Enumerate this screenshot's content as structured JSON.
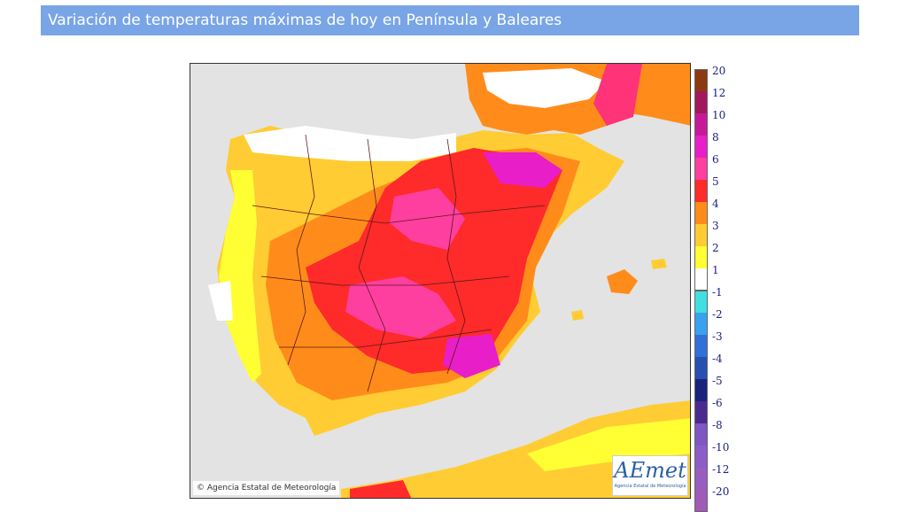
{
  "header": {
    "title": "Variación de temperaturas máximas de hoy en Península y Baleares"
  },
  "map": {
    "copyright": "Agencia Estatal de Meteorología",
    "logo_text": "AEmet",
    "logo_subtext": "Agencia Estatal de Meteorología",
    "logo_icon": "aemet-logo",
    "colors": {
      "sea": "#e3e3e3",
      "neutral": "#ffffff",
      "c1": "#ffff33",
      "c2": "#ffcc33",
      "c3": "#ff8c1a",
      "c4": "#ff3333",
      "c5": "#ff3377",
      "c6": "#e81ec8",
      "c8": "#c8189a"
    }
  },
  "legend": {
    "upper": [
      {
        "label": "20",
        "color": "#8b3a0f"
      },
      {
        "label": "12",
        "color": "#a3185c"
      },
      {
        "label": "10",
        "color": "#c8189a"
      },
      {
        "label": "8",
        "color": "#e81ec8"
      },
      {
        "label": "6",
        "color": "#ff3fa0"
      },
      {
        "label": "5",
        "color": "#ff2a2a"
      },
      {
        "label": "4",
        "color": "#ff8c1a"
      },
      {
        "label": "3",
        "color": "#ffcc33"
      },
      {
        "label": "2",
        "color": "#ffff33"
      },
      {
        "label": "1",
        "color": "#ffffff"
      }
    ],
    "lower": [
      {
        "label": "-1",
        "color": "#40e0e0"
      },
      {
        "label": "-2",
        "color": "#3aa0f0"
      },
      {
        "label": "-3",
        "color": "#3070d8"
      },
      {
        "label": "-4",
        "color": "#2850b0"
      },
      {
        "label": "-5",
        "color": "#1a237e"
      },
      {
        "label": "-6",
        "color": "#4a2a90"
      },
      {
        "label": "-8",
        "color": "#7e57c2"
      },
      {
        "label": "-10",
        "color": "#8e5cc8"
      },
      {
        "label": "-12",
        "color": "#9b5cc0"
      },
      {
        "label": "-20",
        "color": "#a05ab8"
      }
    ]
  }
}
